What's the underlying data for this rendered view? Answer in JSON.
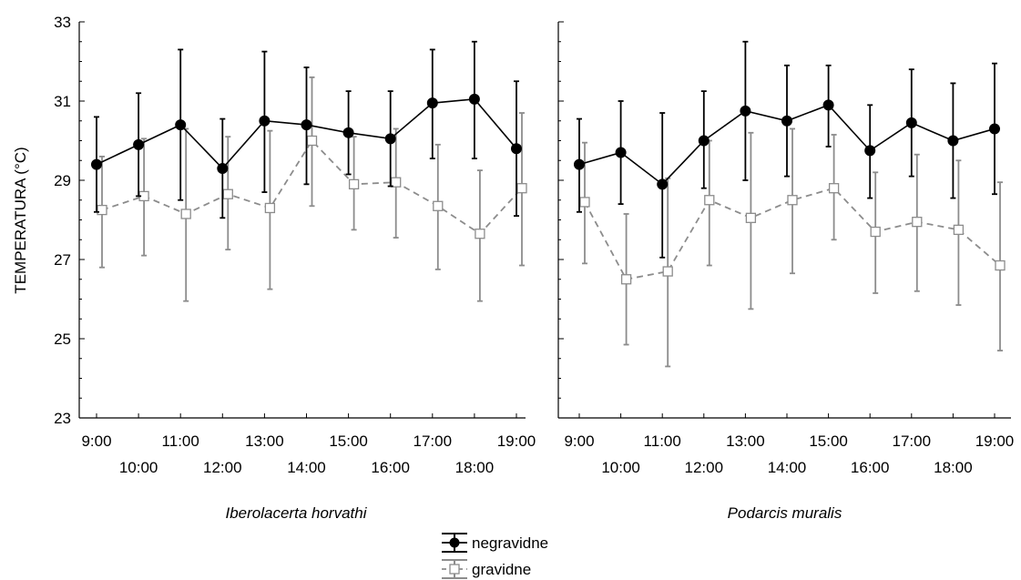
{
  "chart_data": {
    "type": "line",
    "ylabel": "TEMPERATURA (°C)",
    "ylim": [
      23,
      33
    ],
    "yticks": [
      "23",
      "25",
      "27",
      "29",
      "31",
      "33"
    ],
    "categories": [
      "9:00",
      "10:00",
      "11:00",
      "12:00",
      "13:00",
      "14:00",
      "15:00",
      "16:00",
      "17:00",
      "18:00",
      "19:00"
    ],
    "legend": [
      {
        "name": "negravidne",
        "marker": "filled-circle",
        "line": "solid",
        "color": "#000000"
      },
      {
        "name": "gravidne",
        "marker": "open-square",
        "line": "dashed",
        "color": "#8c8c8c"
      }
    ],
    "panels": [
      {
        "title": "Iberolacerta horvathi",
        "series": [
          {
            "name": "negravidne",
            "values": [
              29.4,
              29.9,
              30.4,
              29.3,
              30.5,
              30.4,
              30.2,
              30.05,
              30.95,
              31.05,
              29.8
            ],
            "lower": [
              28.2,
              28.6,
              28.5,
              28.05,
              28.7,
              28.9,
              29.15,
              28.85,
              29.55,
              29.55,
              28.1
            ],
            "upper": [
              30.6,
              31.2,
              32.3,
              30.55,
              32.25,
              31.85,
              31.25,
              31.25,
              32.3,
              32.5,
              31.5
            ]
          },
          {
            "name": "gravidne",
            "values": [
              28.25,
              28.6,
              28.15,
              28.65,
              28.3,
              30.0,
              28.9,
              28.95,
              28.35,
              27.65,
              28.8
            ],
            "lower": [
              26.8,
              27.1,
              25.95,
              27.25,
              26.25,
              28.35,
              27.75,
              27.55,
              26.75,
              25.95,
              26.85
            ],
            "upper": [
              29.6,
              30.05,
              30.3,
              30.1,
              30.25,
              31.6,
              30.1,
              30.3,
              29.9,
              29.25,
              30.7
            ]
          }
        ]
      },
      {
        "title": "Podarcis muralis",
        "series": [
          {
            "name": "negravidne",
            "values": [
              29.4,
              29.7,
              28.9,
              30.0,
              30.75,
              30.5,
              30.9,
              29.75,
              30.45,
              30.0,
              30.3
            ],
            "lower": [
              28.2,
              28.4,
              27.05,
              28.8,
              29.0,
              29.1,
              29.85,
              28.55,
              29.1,
              28.55,
              28.65
            ],
            "upper": [
              30.55,
              31.0,
              30.7,
              31.25,
              32.5,
              31.9,
              31.9,
              30.9,
              31.8,
              31.45,
              31.95
            ]
          },
          {
            "name": "gravidne",
            "values": [
              28.45,
              26.5,
              26.7,
              28.5,
              28.05,
              28.5,
              28.8,
              27.7,
              27.95,
              27.75,
              26.85
            ],
            "lower": [
              26.9,
              24.85,
              24.3,
              26.85,
              25.75,
              26.65,
              27.5,
              26.15,
              26.2,
              25.85,
              24.7
            ],
            "upper": [
              29.95,
              28.15,
              29.05,
              30.0,
              30.2,
              30.3,
              30.15,
              29.2,
              29.65,
              29.5,
              28.95
            ]
          }
        ]
      }
    ],
    "grid": false,
    "legend_position": "bottom-center"
  }
}
